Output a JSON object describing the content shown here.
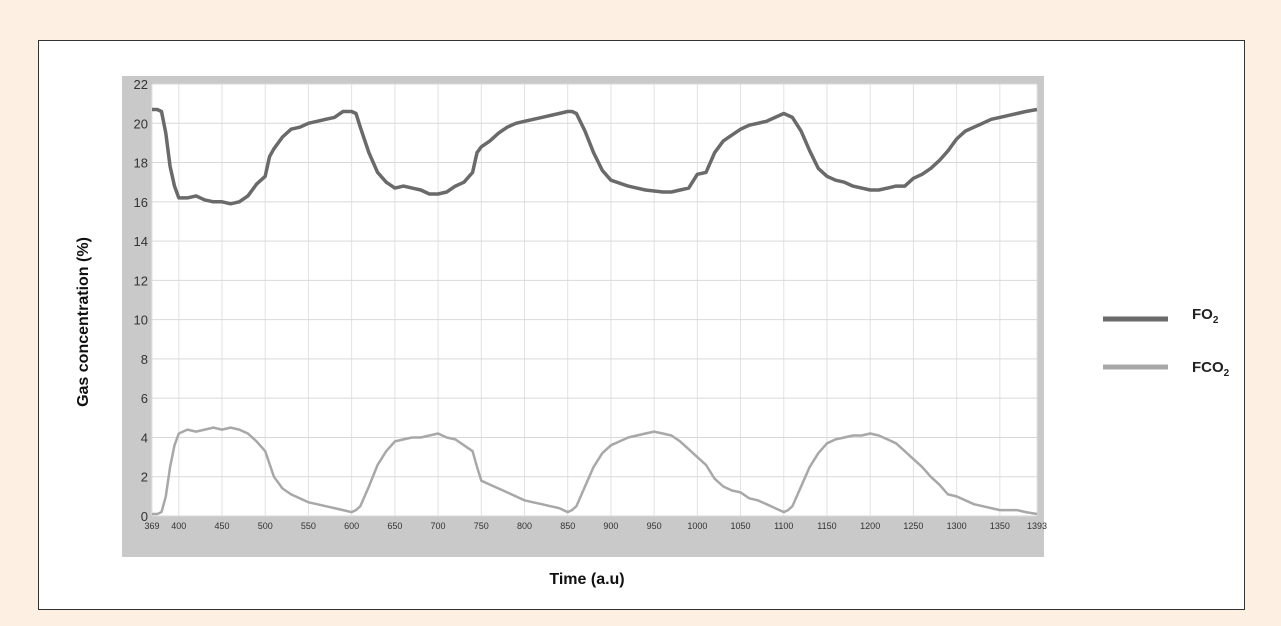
{
  "chart_data": {
    "type": "line",
    "xlabel": "Time (a.u)",
    "ylabel": "Gas concentration (%)",
    "xlim": [
      369,
      1393
    ],
    "ylim": [
      0,
      22
    ],
    "x_ticks": [
      369,
      400,
      450,
      500,
      550,
      600,
      650,
      700,
      750,
      800,
      850,
      900,
      950,
      1000,
      1050,
      1100,
      1150,
      1200,
      1250,
      1300,
      1350,
      1393
    ],
    "y_ticks": [
      0,
      2,
      4,
      6,
      8,
      10,
      12,
      14,
      16,
      18,
      20,
      22
    ],
    "grid": true,
    "legend_position": "right",
    "series": [
      {
        "name": "FO",
        "subscript": "2",
        "color": "#6a6a6a",
        "x": [
          369,
          375,
          380,
          385,
          390,
          395,
          400,
          410,
          420,
          430,
          440,
          450,
          460,
          470,
          480,
          490,
          500,
          505,
          510,
          520,
          530,
          540,
          550,
          560,
          570,
          580,
          590,
          600,
          605,
          610,
          620,
          630,
          640,
          650,
          660,
          670,
          680,
          690,
          700,
          710,
          720,
          730,
          740,
          745,
          750,
          760,
          770,
          780,
          790,
          800,
          820,
          840,
          850,
          855,
          860,
          870,
          880,
          890,
          900,
          920,
          940,
          960,
          970,
          980,
          990,
          1000,
          1010,
          1020,
          1030,
          1040,
          1050,
          1060,
          1070,
          1080,
          1090,
          1100,
          1110,
          1120,
          1130,
          1140,
          1150,
          1160,
          1170,
          1180,
          1190,
          1200,
          1210,
          1220,
          1230,
          1240,
          1250,
          1260,
          1270,
          1280,
          1290,
          1300,
          1310,
          1320,
          1330,
          1340,
          1350,
          1360,
          1370,
          1380,
          1393
        ],
        "values": [
          20.7,
          20.7,
          20.6,
          19.5,
          17.8,
          16.8,
          16.2,
          16.2,
          16.3,
          16.1,
          16.0,
          16.0,
          15.9,
          16.0,
          16.3,
          16.9,
          17.3,
          18.3,
          18.7,
          19.3,
          19.7,
          19.8,
          20.0,
          20.1,
          20.2,
          20.3,
          20.6,
          20.6,
          20.5,
          19.8,
          18.5,
          17.5,
          17.0,
          16.7,
          16.8,
          16.7,
          16.6,
          16.4,
          16.4,
          16.5,
          16.8,
          17.0,
          17.5,
          18.5,
          18.8,
          19.1,
          19.5,
          19.8,
          20.0,
          20.1,
          20.3,
          20.5,
          20.6,
          20.6,
          20.5,
          19.6,
          18.5,
          17.6,
          17.1,
          16.8,
          16.6,
          16.5,
          16.5,
          16.6,
          16.7,
          17.4,
          17.5,
          18.5,
          19.1,
          19.4,
          19.7,
          19.9,
          20.0,
          20.1,
          20.3,
          20.5,
          20.3,
          19.6,
          18.6,
          17.7,
          17.3,
          17.1,
          17.0,
          16.8,
          16.7,
          16.6,
          16.6,
          16.7,
          16.8,
          16.8,
          17.2,
          17.4,
          17.7,
          18.1,
          18.6,
          19.2,
          19.6,
          19.8,
          20.0,
          20.2,
          20.3,
          20.4,
          20.5,
          20.6,
          20.7
        ]
      },
      {
        "name": "FCO",
        "subscript": "2",
        "color": "#a8a8a8",
        "x": [
          369,
          375,
          380,
          385,
          390,
          395,
          400,
          410,
          420,
          430,
          440,
          450,
          460,
          470,
          480,
          490,
          500,
          510,
          520,
          530,
          540,
          550,
          560,
          570,
          580,
          590,
          600,
          605,
          610,
          620,
          630,
          640,
          650,
          660,
          670,
          680,
          690,
          700,
          710,
          720,
          730,
          740,
          745,
          750,
          760,
          770,
          780,
          790,
          800,
          810,
          820,
          830,
          840,
          850,
          855,
          860,
          870,
          880,
          890,
          900,
          910,
          920,
          930,
          940,
          950,
          960,
          970,
          980,
          990,
          1000,
          1010,
          1020,
          1030,
          1040,
          1050,
          1060,
          1070,
          1080,
          1090,
          1100,
          1105,
          1110,
          1120,
          1130,
          1140,
          1150,
          1160,
          1170,
          1180,
          1190,
          1200,
          1210,
          1220,
          1230,
          1240,
          1250,
          1260,
          1270,
          1280,
          1290,
          1300,
          1310,
          1320,
          1330,
          1340,
          1350,
          1360,
          1370,
          1380,
          1393
        ],
        "values": [
          0.1,
          0.1,
          0.2,
          1.0,
          2.5,
          3.6,
          4.2,
          4.4,
          4.3,
          4.4,
          4.5,
          4.4,
          4.5,
          4.4,
          4.2,
          3.8,
          3.3,
          2.0,
          1.4,
          1.1,
          0.9,
          0.7,
          0.6,
          0.5,
          0.4,
          0.3,
          0.2,
          0.3,
          0.5,
          1.5,
          2.6,
          3.3,
          3.8,
          3.9,
          4.0,
          4.0,
          4.1,
          4.2,
          4.0,
          3.9,
          3.6,
          3.3,
          2.5,
          1.8,
          1.6,
          1.4,
          1.2,
          1.0,
          0.8,
          0.7,
          0.6,
          0.5,
          0.4,
          0.2,
          0.3,
          0.5,
          1.5,
          2.5,
          3.2,
          3.6,
          3.8,
          4.0,
          4.1,
          4.2,
          4.3,
          4.2,
          4.1,
          3.8,
          3.4,
          3.0,
          2.6,
          1.9,
          1.5,
          1.3,
          1.2,
          0.9,
          0.8,
          0.6,
          0.4,
          0.2,
          0.3,
          0.5,
          1.5,
          2.5,
          3.2,
          3.7,
          3.9,
          4.0,
          4.1,
          4.1,
          4.2,
          4.1,
          3.9,
          3.7,
          3.3,
          2.9,
          2.5,
          2.0,
          1.6,
          1.1,
          1.0,
          0.8,
          0.6,
          0.5,
          0.4,
          0.3,
          0.3,
          0.3,
          0.2,
          0.1
        ]
      }
    ]
  }
}
